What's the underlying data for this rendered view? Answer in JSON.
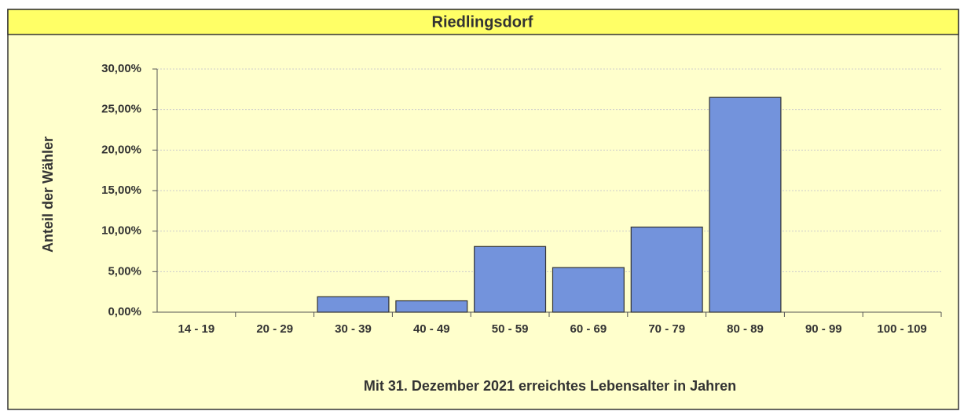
{
  "chart_data": {
    "type": "bar",
    "title": "Riedlingsdorf",
    "xlabel": "Mit 31. Dezember 2021 erreichtes Lebensalter in Jahren",
    "ylabel": "Anteil der Wähler",
    "categories": [
      "14 - 19",
      "20 - 29",
      "30 - 39",
      "40 - 49",
      "50 - 59",
      "60 - 69",
      "70 - 79",
      "80 - 89",
      "90 - 99",
      "100 - 109"
    ],
    "values": [
      0,
      0,
      1.9,
      1.4,
      8.1,
      5.5,
      10.5,
      26.5,
      0,
      0
    ],
    "color": "#7393dc",
    "ylim": [
      0,
      30
    ],
    "yticks": [
      {
        "value": 0,
        "label": "0,00%"
      },
      {
        "value": 5,
        "label": "5,00%"
      },
      {
        "value": 10,
        "label": "10,00%"
      },
      {
        "value": 15,
        "label": "15,00%"
      },
      {
        "value": 20,
        "label": "20,00%"
      },
      {
        "value": 25,
        "label": "25,00%"
      },
      {
        "value": 30,
        "label": "30,00%"
      }
    ],
    "grid": true
  }
}
